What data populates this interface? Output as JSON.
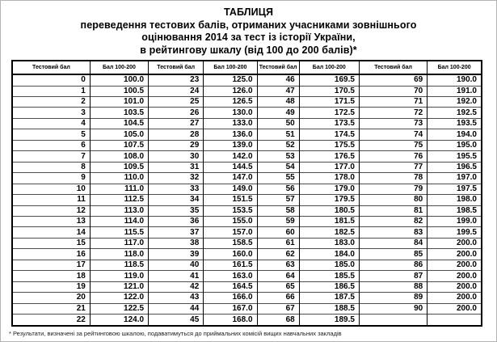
{
  "page": {
    "title_lines": [
      "ТАБЛИЦЯ",
      "переведення тестових балів, отриманих учасниками зовнішнього",
      "оцінювання 2014 за тест із історії України,",
      "в рейтингову шкалу (від 100 до 200 балів)*"
    ],
    "footnote": "* Результати, визначені за рейтинговою шкалою, подаватимуться до приймальних комісій вищих навчальних закладів"
  },
  "table": {
    "column_headers": [
      "Тестовий бал",
      "Бал 100-200",
      "Тестовий бал",
      "Бал 100-200",
      "Тестовий бал",
      "Бал 100-200",
      "Тестовий бал",
      "Бал 100-200"
    ],
    "rows": [
      [
        "0",
        "100.0",
        "23",
        "125.0",
        "46",
        "169.5",
        "69",
        "190.0"
      ],
      [
        "1",
        "100.5",
        "24",
        "126.0",
        "47",
        "170.5",
        "70",
        "191.0"
      ],
      [
        "2",
        "101.0",
        "25",
        "126.5",
        "48",
        "171.5",
        "71",
        "192.0"
      ],
      [
        "3",
        "103.5",
        "26",
        "130.0",
        "49",
        "172.5",
        "72",
        "192.5"
      ],
      [
        "4",
        "104.5",
        "27",
        "133.0",
        "50",
        "173.5",
        "73",
        "193.5"
      ],
      [
        "5",
        "105.0",
        "28",
        "136.0",
        "51",
        "174.5",
        "74",
        "194.0"
      ],
      [
        "6",
        "107.5",
        "29",
        "139.0",
        "52",
        "175.5",
        "75",
        "195.0"
      ],
      [
        "7",
        "108.0",
        "30",
        "142.0",
        "53",
        "176.5",
        "76",
        "195.5"
      ],
      [
        "8",
        "109.5",
        "31",
        "144.5",
        "54",
        "177.0",
        "77",
        "196.5"
      ],
      [
        "9",
        "110.0",
        "32",
        "147.0",
        "55",
        "178.0",
        "78",
        "197.0"
      ],
      [
        "10",
        "111.0",
        "33",
        "149.0",
        "56",
        "179.0",
        "79",
        "197.5"
      ],
      [
        "11",
        "112.5",
        "34",
        "151.5",
        "57",
        "179.5",
        "80",
        "198.0"
      ],
      [
        "12",
        "113.0",
        "35",
        "153.5",
        "58",
        "180.5",
        "81",
        "198.5"
      ],
      [
        "13",
        "114.0",
        "36",
        "155.0",
        "59",
        "181.5",
        "82",
        "199.0"
      ],
      [
        "14",
        "115.5",
        "37",
        "157.0",
        "60",
        "182.5",
        "83",
        "199.5"
      ],
      [
        "15",
        "117.0",
        "38",
        "158.5",
        "61",
        "183.0",
        "84",
        "200.0"
      ],
      [
        "16",
        "118.0",
        "39",
        "160.0",
        "62",
        "184.0",
        "85",
        "200.0"
      ],
      [
        "17",
        "118.5",
        "40",
        "161.5",
        "63",
        "185.0",
        "86",
        "200.0"
      ],
      [
        "18",
        "119.0",
        "41",
        "163.0",
        "64",
        "185.5",
        "87",
        "200.0"
      ],
      [
        "19",
        "121.0",
        "42",
        "164.5",
        "65",
        "186.5",
        "88",
        "200.0"
      ],
      [
        "20",
        "122.0",
        "43",
        "166.0",
        "66",
        "187.5",
        "89",
        "200.0"
      ],
      [
        "21",
        "122.5",
        "44",
        "167.0",
        "67",
        "188.5",
        "90",
        "200.0"
      ],
      [
        "22",
        "124.0",
        "45",
        "168.0",
        "68",
        "189.5",
        "",
        ""
      ]
    ]
  },
  "colors": {
    "outer_border": "#000000",
    "row_line": "#4d4d4d",
    "page_frame": "#b3b3b3",
    "text": "#000000"
  }
}
